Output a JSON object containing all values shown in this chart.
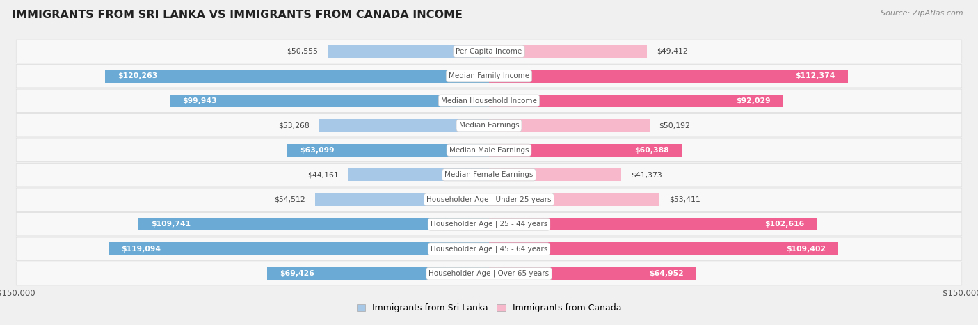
{
  "title": "IMMIGRANTS FROM SRI LANKA VS IMMIGRANTS FROM CANADA INCOME",
  "source": "Source: ZipAtlas.com",
  "categories": [
    "Per Capita Income",
    "Median Family Income",
    "Median Household Income",
    "Median Earnings",
    "Median Male Earnings",
    "Median Female Earnings",
    "Householder Age | Under 25 years",
    "Householder Age | 25 - 44 years",
    "Householder Age | 45 - 64 years",
    "Householder Age | Over 65 years"
  ],
  "sri_lanka_values": [
    50555,
    120263,
    99943,
    53268,
    63099,
    44161,
    54512,
    109741,
    119094,
    69426
  ],
  "canada_values": [
    49412,
    112374,
    92029,
    50192,
    60388,
    41373,
    53411,
    102616,
    109402,
    64952
  ],
  "sri_lanka_labels": [
    "$50,555",
    "$120,263",
    "$99,943",
    "$53,268",
    "$63,099",
    "$44,161",
    "$54,512",
    "$109,741",
    "$119,094",
    "$69,426"
  ],
  "canada_labels": [
    "$49,412",
    "$112,374",
    "$92,029",
    "$50,192",
    "$60,388",
    "$41,373",
    "$53,411",
    "$102,616",
    "$109,402",
    "$64,952"
  ],
  "sri_lanka_color_light": "#a8c8e8",
  "sri_lanka_color_dark": "#6aaad4",
  "canada_color_light": "#f8b8cc",
  "canada_color_dark": "#f06090",
  "label_threshold": 60000,
  "max_value": 150000,
  "background_color": "#f0f0f0",
  "row_bg": "#f8f8f8",
  "row_border": "#dddddd",
  "legend_sri_lanka": "Immigrants from Sri Lanka",
  "legend_canada": "Immigrants from Canada",
  "axis_label_color": "#555555",
  "label_outside_color": "#444444",
  "label_inside_color": "#ffffff",
  "category_text_color": "#555555",
  "title_color": "#222222",
  "source_color": "#888888"
}
